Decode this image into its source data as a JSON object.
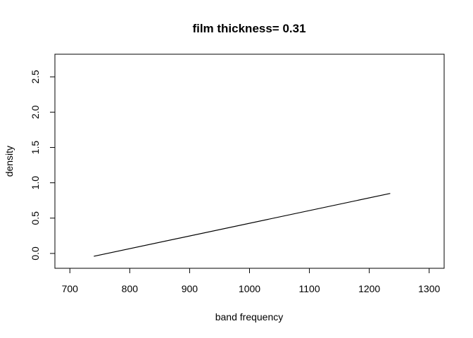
{
  "chart_data": {
    "type": "line",
    "title": "film thickness=  0.31",
    "xlabel": "band frequency",
    "ylabel": "density",
    "xlim": [
      675,
      1325
    ],
    "ylim": [
      -0.21,
      2.82
    ],
    "xticks": [
      700,
      800,
      900,
      1000,
      1100,
      1200,
      1300
    ],
    "yticks": [
      0.0,
      0.5,
      1.0,
      1.5,
      2.0,
      2.5
    ],
    "ytick_labels": [
      "0.0",
      "0.5",
      "1.0",
      "1.5",
      "2.0",
      "2.5"
    ],
    "grid": false,
    "series": [
      {
        "x": [
          740,
          1235
        ],
        "y": [
          -0.04,
          0.85
        ]
      }
    ]
  }
}
